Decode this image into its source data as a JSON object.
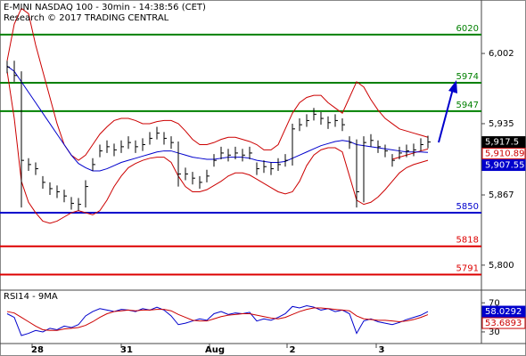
{
  "chart_data": [
    {
      "type": "ohlc",
      "title": "E-MINI NASDAQ 100 - 30min - 14:38:56 (CET)",
      "subtitle": "Research © 2017 TRADING CENTRAL",
      "xticks": [
        "28",
        "31",
        "Aug",
        "2",
        "3"
      ],
      "ylim": [
        5777,
        6053
      ],
      "yticks": [
        {
          "value": 5800,
          "label": "5,800"
        },
        {
          "value": 5867,
          "label": "5,867"
        },
        {
          "value": 5935,
          "label": "5,935"
        },
        {
          "value": 6002,
          "label": "6,002"
        }
      ],
      "color": "#000000",
      "box": "filled",
      "box_label": "5,917.5",
      "high": [
        5995,
        5995,
        5985,
        5902,
        5898,
        5885,
        5879,
        5876,
        5872,
        5865,
        5864,
        5881,
        5902,
        5915,
        5919,
        5916,
        5919,
        5923,
        5919,
        5921,
        5927,
        5932,
        5927,
        5923,
        5918,
        5893,
        5889,
        5885,
        5891,
        5906,
        5913,
        5911,
        5913,
        5911,
        5913,
        5898,
        5900,
        5898,
        5902,
        5906,
        5935,
        5940,
        5944,
        5950,
        5946,
        5942,
        5944,
        5940,
        5923,
        5920,
        5923,
        5925,
        5919,
        5915,
        5906,
        5913,
        5915,
        5916,
        5921,
        5923.5
      ],
      "low": [
        5983,
        5975,
        5855,
        5890,
        5886,
        5873,
        5867,
        5864,
        5860,
        5853,
        5852,
        5855,
        5890,
        5903,
        5907,
        5904,
        5907,
        5911,
        5907,
        5909,
        5915,
        5920,
        5915,
        5911,
        5875,
        5881,
        5877,
        5873,
        5879,
        5894,
        5901,
        5899,
        5901,
        5899,
        5901,
        5886,
        5888,
        5886,
        5890,
        5894,
        5895,
        5928,
        5932,
        5938,
        5934,
        5930,
        5932,
        5928,
        5911,
        5855,
        5860,
        5913,
        5907,
        5903,
        5894,
        5901,
        5903,
        5904,
        5909,
        5911.5
      ],
      "close": [
        5989,
        5981,
        5900,
        5896,
        5892,
        5879,
        5873,
        5870,
        5866,
        5859,
        5858,
        5875,
        5896,
        5909,
        5913,
        5910,
        5913,
        5917,
        5913,
        5915,
        5921,
        5926,
        5921,
        5917,
        5887,
        5887,
        5883,
        5879,
        5885,
        5900,
        5907,
        5905,
        5907,
        5905,
        5907,
        5892,
        5894,
        5892,
        5896,
        5900,
        5930,
        5934,
        5938,
        5944,
        5940,
        5936,
        5938,
        5934,
        5917,
        5870,
        5917,
        5919,
        5913,
        5909,
        5900,
        5907,
        5909,
        5910,
        5915,
        5917.5
      ],
      "series": [
        {
          "color": "#cc0000",
          "values": [
            5995,
            6030,
            6045,
            6040,
            6010,
            5985,
            5960,
            5935,
            5915,
            5905,
            5900,
            5905,
            5915,
            5925,
            5932,
            5938,
            5940,
            5940,
            5938,
            5935,
            5935,
            5937,
            5938,
            5938,
            5935,
            5928,
            5920,
            5915,
            5915,
            5917,
            5920,
            5922,
            5922,
            5920,
            5918,
            5915,
            5910,
            5910,
            5915,
            5930,
            5945,
            5955,
            5960,
            5962,
            5962,
            5955,
            5950,
            5945,
            5960,
            5975,
            5970,
            5958,
            5948,
            5940,
            5935,
            5930,
            5928,
            5926,
            5924,
            5922
          ]
        },
        {
          "color": "#cc0000",
          "values": [
            5985,
            5940,
            5880,
            5860,
            5850,
            5842,
            5840,
            5842,
            5846,
            5850,
            5852,
            5850,
            5848,
            5852,
            5862,
            5875,
            5885,
            5893,
            5897,
            5900,
            5902,
            5903,
            5903,
            5898,
            5885,
            5875,
            5870,
            5870,
            5872,
            5876,
            5880,
            5885,
            5888,
            5888,
            5886,
            5882,
            5878,
            5874,
            5870,
            5868,
            5870,
            5880,
            5895,
            5905,
            5910,
            5912,
            5912,
            5908,
            5885,
            5862,
            5858,
            5860,
            5865,
            5872,
            5880,
            5888,
            5893,
            5896,
            5898,
            5900
          ]
        },
        {
          "color": "#cc0000",
          "box": "outline",
          "box_label": "5,910.89",
          "values": [
            null,
            null,
            null,
            null,
            null,
            null,
            null,
            null,
            null,
            null,
            null,
            null,
            null,
            null,
            null,
            null,
            null,
            null,
            null,
            null,
            null,
            null,
            null,
            null,
            null,
            null,
            null,
            null,
            null,
            null,
            null,
            null,
            null,
            null,
            null,
            null,
            null,
            null,
            null,
            null,
            null,
            null,
            null,
            null,
            null,
            null,
            null,
            null,
            null,
            null,
            null,
            null,
            null,
            null,
            5901,
            5903,
            5905,
            5907,
            5909,
            5910.89
          ]
        },
        {
          "color": "#0000cc",
          "box": "filled",
          "box_label": "5,907.55",
          "values": [
            5990,
            5985,
            5975,
            5965,
            5955,
            5945,
            5935,
            5925,
            5915,
            5905,
            5897,
            5893,
            5890,
            5890,
            5892,
            5895,
            5898,
            5900,
            5902,
            5904,
            5906,
            5908,
            5909,
            5909,
            5907,
            5905,
            5903,
            5902,
            5901,
            5901,
            5902,
            5903,
            5903,
            5903,
            5902,
            5900,
            5899,
            5898,
            5898,
            5899,
            5902,
            5905,
            5908,
            5911,
            5914,
            5916,
            5918,
            5919,
            5918,
            5915,
            5914,
            5913,
            5912,
            5911,
            5910,
            5909,
            5908,
            5908,
            5908,
            5907.55
          ]
        }
      ],
      "levels": [
        {
          "value": 6020,
          "color": "#008000"
        },
        {
          "value": 5974,
          "color": "#008000"
        },
        {
          "value": 5947,
          "color": "#008000"
        },
        {
          "value": 5850,
          "color": "#0000cc"
        },
        {
          "value": 5818,
          "color": "#dd0000"
        },
        {
          "value": 5791,
          "color": "#dd0000"
        }
      ]
    },
    {
      "type": "line",
      "title": "RSI14 - 9MA",
      "ylim": [
        14,
        85
      ],
      "yticks": [
        30,
        70
      ],
      "series": [
        {
          "color": "#0000cc",
          "box": "filled",
          "values": [
            55,
            50,
            25,
            28,
            32,
            30,
            35,
            33,
            38,
            36,
            40,
            52,
            58,
            62,
            60,
            58,
            61,
            60,
            58,
            62,
            60,
            64,
            60,
            52,
            40,
            42,
            45,
            48,
            46,
            55,
            58,
            54,
            56,
            55,
            57,
            45,
            48,
            46,
            50,
            55,
            65,
            63,
            66,
            64,
            60,
            62,
            58,
            60,
            55,
            28,
            45,
            48,
            44,
            42,
            40,
            43,
            47,
            50,
            53,
            58.0292
          ]
        },
        {
          "color": "#cc0000",
          "box": "outline",
          "values": [
            58,
            56,
            50,
            44,
            38,
            33,
            32,
            32,
            34,
            35,
            36,
            39,
            44,
            50,
            55,
            58,
            59,
            60,
            59,
            60,
            60,
            61,
            61,
            59,
            54,
            50,
            46,
            45,
            45,
            48,
            51,
            53,
            54,
            55,
            55,
            53,
            51,
            49,
            48,
            50,
            54,
            58,
            61,
            63,
            63,
            62,
            61,
            60,
            59,
            52,
            48,
            47,
            46,
            46,
            45,
            44,
            45,
            47,
            50,
            53.6893
          ]
        }
      ]
    }
  ]
}
